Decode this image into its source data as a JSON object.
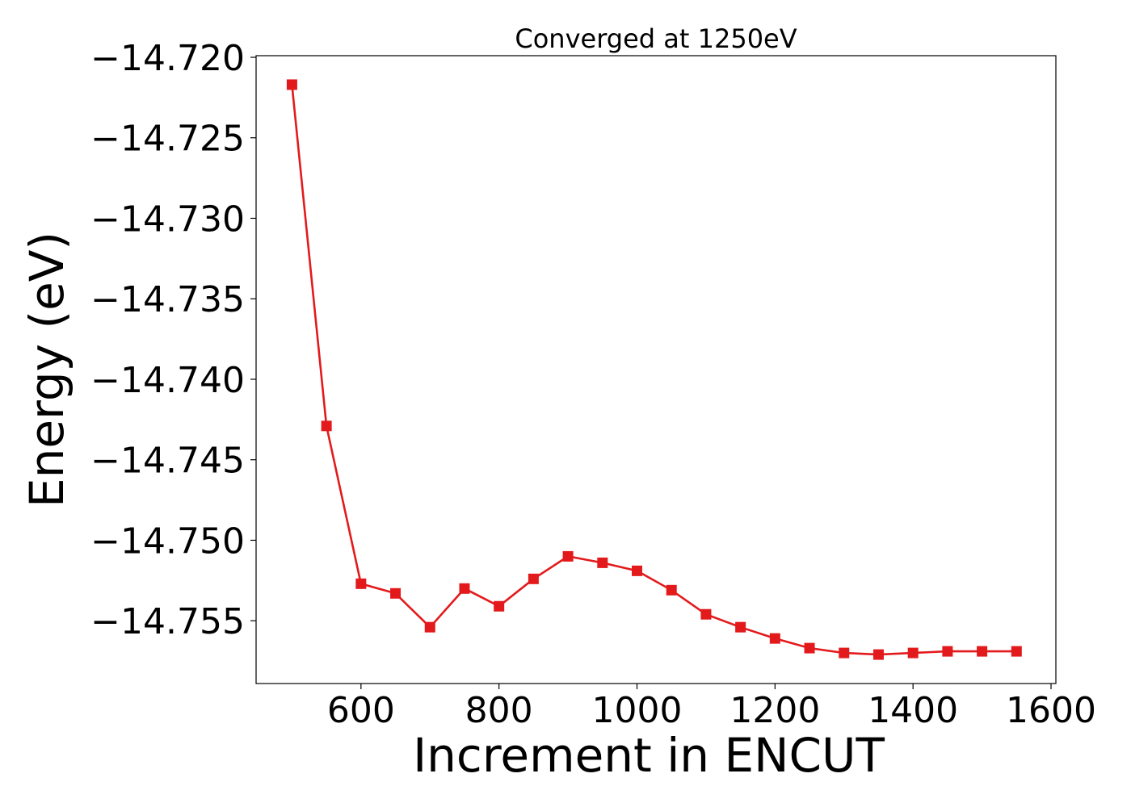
{
  "chart_data": {
    "type": "line",
    "title": "Converged at 1250eV",
    "xlabel": "Increment in ENCUT",
    "ylabel": "Energy (eV)",
    "xlim": [
      448,
      1607
    ],
    "ylim": [
      -14.7589,
      -14.7199
    ],
    "xticks": [
      600,
      800,
      1000,
      1200,
      1400,
      1600
    ],
    "xtick_labels": [
      "600",
      "800",
      "1000",
      "1200",
      "1400",
      "1600"
    ],
    "yticks": [
      -14.72,
      -14.725,
      -14.73,
      -14.735,
      -14.74,
      -14.745,
      -14.75,
      -14.755
    ],
    "ytick_labels": [
      "−14.720",
      "−14.725",
      "−14.730",
      "−14.735",
      "−14.740",
      "−14.745",
      "−14.750",
      "−14.755"
    ],
    "grid": false,
    "legend": null,
    "series": [
      {
        "color": "#e31a1c",
        "marker": "square",
        "x": [
          500,
          550,
          600,
          650,
          700,
          750,
          800,
          850,
          900,
          950,
          1000,
          1050,
          1100,
          1150,
          1200,
          1250,
          1300,
          1350,
          1400,
          1450,
          1500,
          1550
        ],
        "y": [
          -14.7217,
          -14.7429,
          -14.7527,
          -14.7533,
          -14.7554,
          -14.753,
          -14.7541,
          -14.7524,
          -14.751,
          -14.7514,
          -14.7519,
          -14.7531,
          -14.7546,
          -14.7554,
          -14.7561,
          -14.7567,
          -14.757,
          -14.7571,
          -14.757,
          -14.7569,
          -14.7569,
          -14.7569
        ]
      }
    ]
  }
}
